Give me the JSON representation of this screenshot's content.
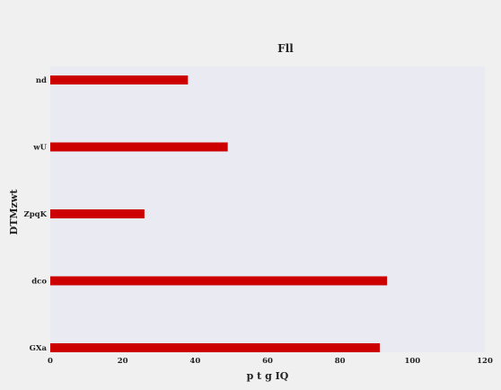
{
  "chart_data": {
    "type": "bar",
    "orientation": "horizontal",
    "title": "Fll",
    "xlabel": "p t g IQ",
    "ylabel": "DTMzwt",
    "categories": [
      "nd",
      "wU",
      "ZpqK",
      "dco",
      "GXa"
    ],
    "values": [
      38,
      49,
      26,
      93,
      91
    ],
    "xlim": [
      0,
      120
    ],
    "xticks": [
      0,
      20,
      40,
      60,
      80,
      100,
      120
    ],
    "grid": false,
    "bar_color": "#cc0000",
    "plot_background": "#eaeaf2",
    "page_background": "#f0f0f0"
  }
}
